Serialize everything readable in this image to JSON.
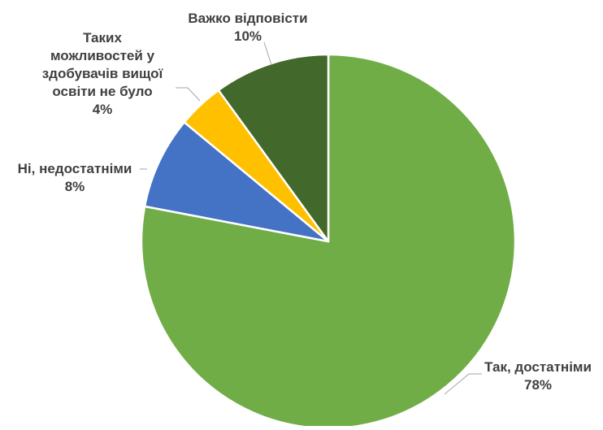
{
  "chart_data": {
    "type": "pie",
    "title": "",
    "categories": [
      "Так, достатніми",
      "Ні, недостатніми",
      "Таких можливостей у здобувачів вищої освіти не було",
      "Важко відповісти"
    ],
    "values": [
      78,
      8,
      4,
      10
    ],
    "value_labels": [
      "78%",
      "8%",
      "4%",
      "10%"
    ],
    "colors": [
      "#70AD47",
      "#4472C4",
      "#FFC000",
      "#43682B"
    ],
    "label_lines": [
      [
        "Так, достатніми",
        "78%"
      ],
      [
        "Ні, недостатніми",
        "8%"
      ],
      [
        "Таких",
        "можливостей у",
        "здобувачів вищої",
        "освіти не було",
        "4%"
      ],
      [
        "Важко відповісти",
        "10%"
      ]
    ],
    "start_angle_deg": 0,
    "direction": "clockwise",
    "legend": "none"
  }
}
